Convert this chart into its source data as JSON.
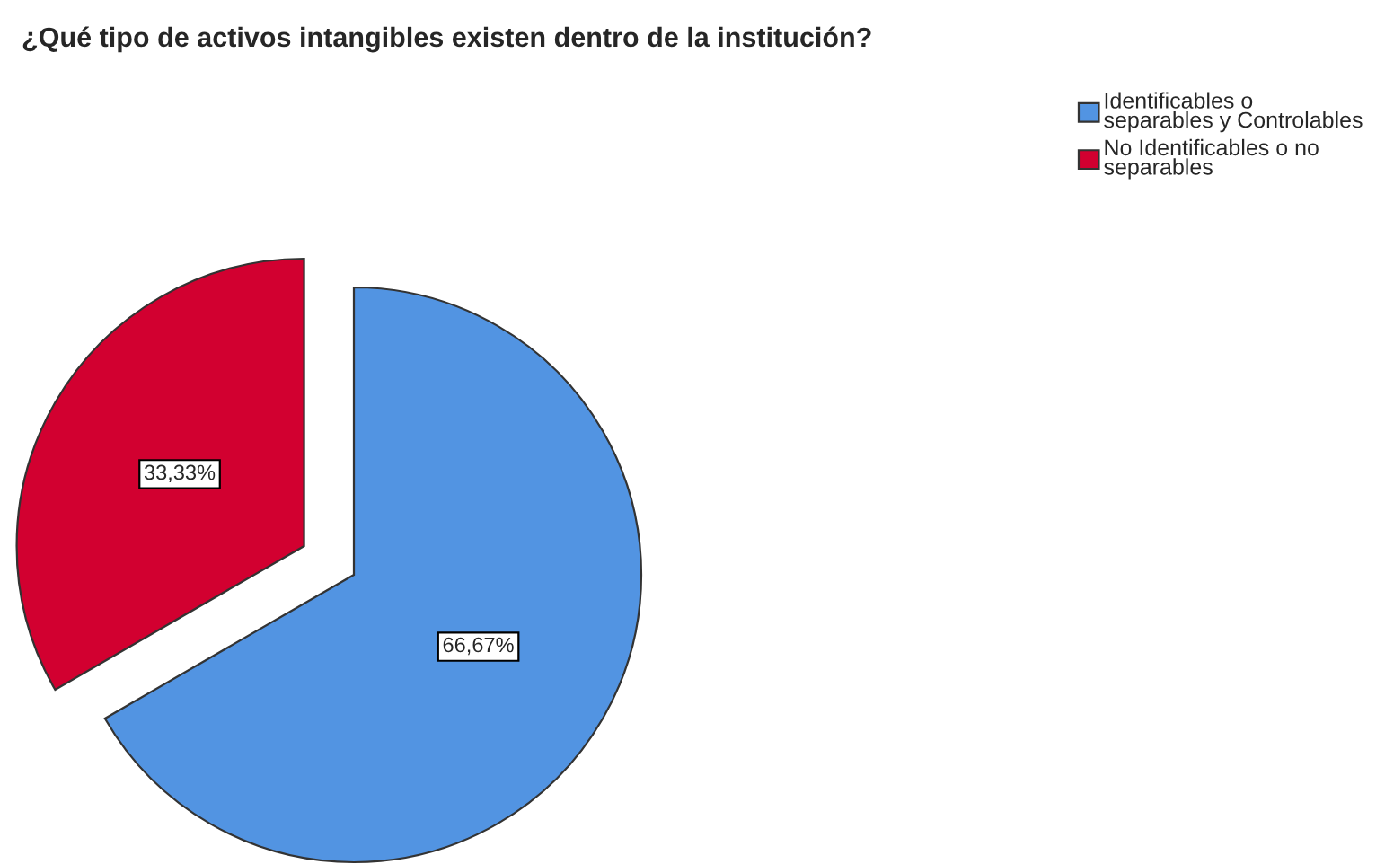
{
  "chart_data": {
    "type": "pie",
    "title": "¿Qué tipo de activos intangibles existen dentro de la institución?",
    "categories": [
      "Identificables o separables y Controlables",
      "No Identificables o no separables"
    ],
    "values": [
      66.67,
      33.33
    ],
    "colors": [
      "#5294e2",
      "#d20030"
    ],
    "value_labels": [
      "66,67%",
      "33,33%"
    ],
    "legend": "top right"
  }
}
